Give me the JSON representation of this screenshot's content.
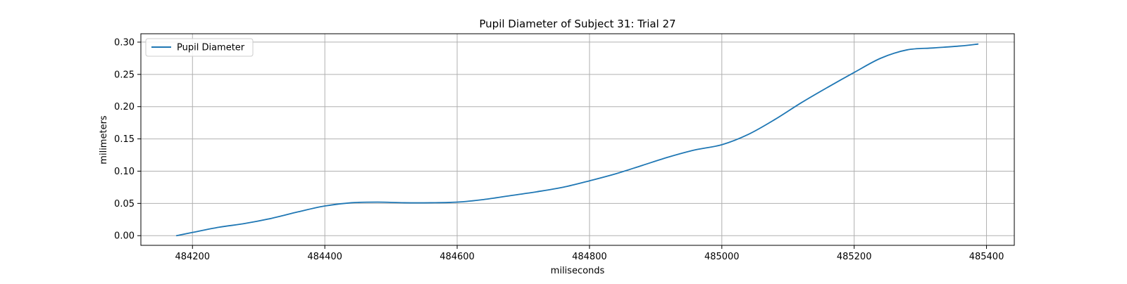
{
  "colors": {
    "series": "#1f77b4",
    "grid": "#b0b0b0",
    "axis": "#000000",
    "background": "#ffffff"
  },
  "chart_data": {
    "type": "line",
    "title": "Pupil Diameter of Subject 31: Trial 27",
    "xlabel": "miliseconds",
    "ylabel": "milimeters",
    "xlim": [
      484122,
      485442
    ],
    "ylim": [
      -0.015,
      0.313
    ],
    "xticks": [
      484200,
      484400,
      484600,
      484800,
      485000,
      485200,
      485400
    ],
    "xtick_labels": [
      "484200",
      "484400",
      "484600",
      "484800",
      "485000",
      "485200",
      "485400"
    ],
    "yticks": [
      0.0,
      0.05,
      0.1,
      0.15,
      0.2,
      0.25,
      0.3
    ],
    "ytick_labels": [
      "0.00",
      "0.05",
      "0.10",
      "0.15",
      "0.20",
      "0.25",
      "0.30"
    ],
    "grid": true,
    "legend": {
      "position": "top-left"
    },
    "series": [
      {
        "name": "Pupil Diameter",
        "x": [
          484176,
          484200,
          484240,
          484280,
          484320,
          484360,
          484400,
          484440,
          484480,
          484520,
          484560,
          484600,
          484640,
          484680,
          484720,
          484760,
          484800,
          484840,
          484880,
          484920,
          484960,
          485000,
          485040,
          485080,
          485120,
          485160,
          485200,
          485240,
          485280,
          485320,
          485360,
          485387
        ],
        "y": [
          0.0,
          0.005,
          0.013,
          0.019,
          0.027,
          0.037,
          0.046,
          0.051,
          0.052,
          0.051,
          0.051,
          0.052,
          0.056,
          0.062,
          0.068,
          0.075,
          0.085,
          0.096,
          0.109,
          0.122,
          0.133,
          0.141,
          0.157,
          0.18,
          0.206,
          0.23,
          0.253,
          0.275,
          0.288,
          0.291,
          0.294,
          0.297
        ]
      }
    ]
  }
}
